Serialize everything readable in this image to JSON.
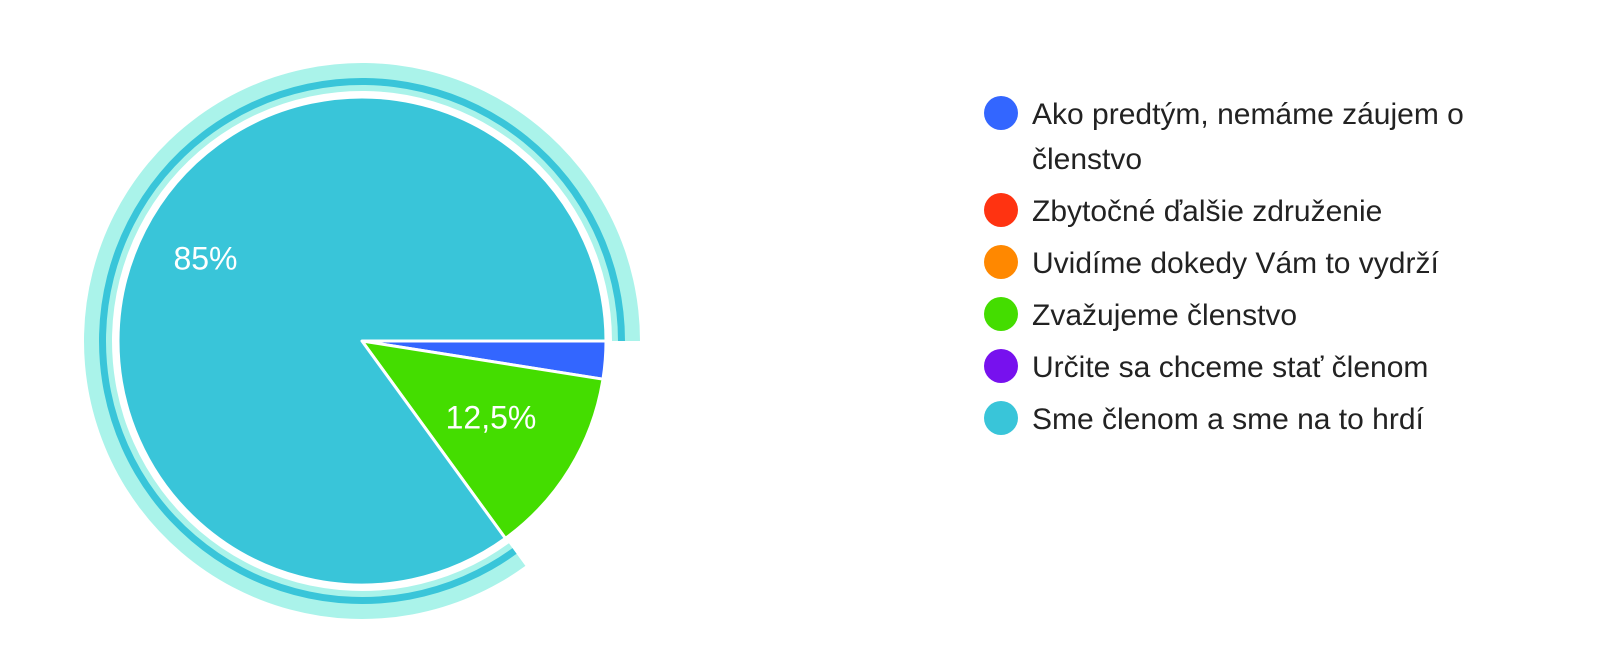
{
  "chart_data": {
    "type": "pie",
    "categories": [
      "Ako predtým, nemáme záujem o členstvo",
      "Zbytočné ďalšie združenie",
      "Uvidíme dokedy Vám to vydrží",
      "Zvažujeme členstvo",
      "Určite sa chceme stať členom",
      "Sme členom a sme na to hrdí"
    ],
    "values": [
      2.5,
      0,
      0,
      12.5,
      0,
      85
    ],
    "data_labels": [
      "",
      "",
      "",
      "12,5%",
      "",
      "85%"
    ],
    "colors": [
      "#3366ff",
      "#ff3311",
      "#ff8800",
      "#44dd00",
      "#7711ee",
      "#39c5d9"
    ],
    "highlight_color": "#aaf3ea",
    "highlighted_slice": "Sme členom a sme na to hrdí",
    "legend_position": "right"
  },
  "legend": {
    "items": [
      {
        "label": "Ako predtým, nemáme záujem o členstvo",
        "color": "#3366ff"
      },
      {
        "label": "Zbytočné ďalšie združenie",
        "color": "#ff3311"
      },
      {
        "label": "Uvidíme dokedy Vám to vydrží",
        "color": "#ff8800"
      },
      {
        "label": "Zvažujeme členstvo",
        "color": "#44dd00"
      },
      {
        "label": "Určite sa chceme stať členom",
        "color": "#7711ee"
      },
      {
        "label": "Sme členom a sme na to hrdí",
        "color": "#39c5d9"
      }
    ]
  }
}
